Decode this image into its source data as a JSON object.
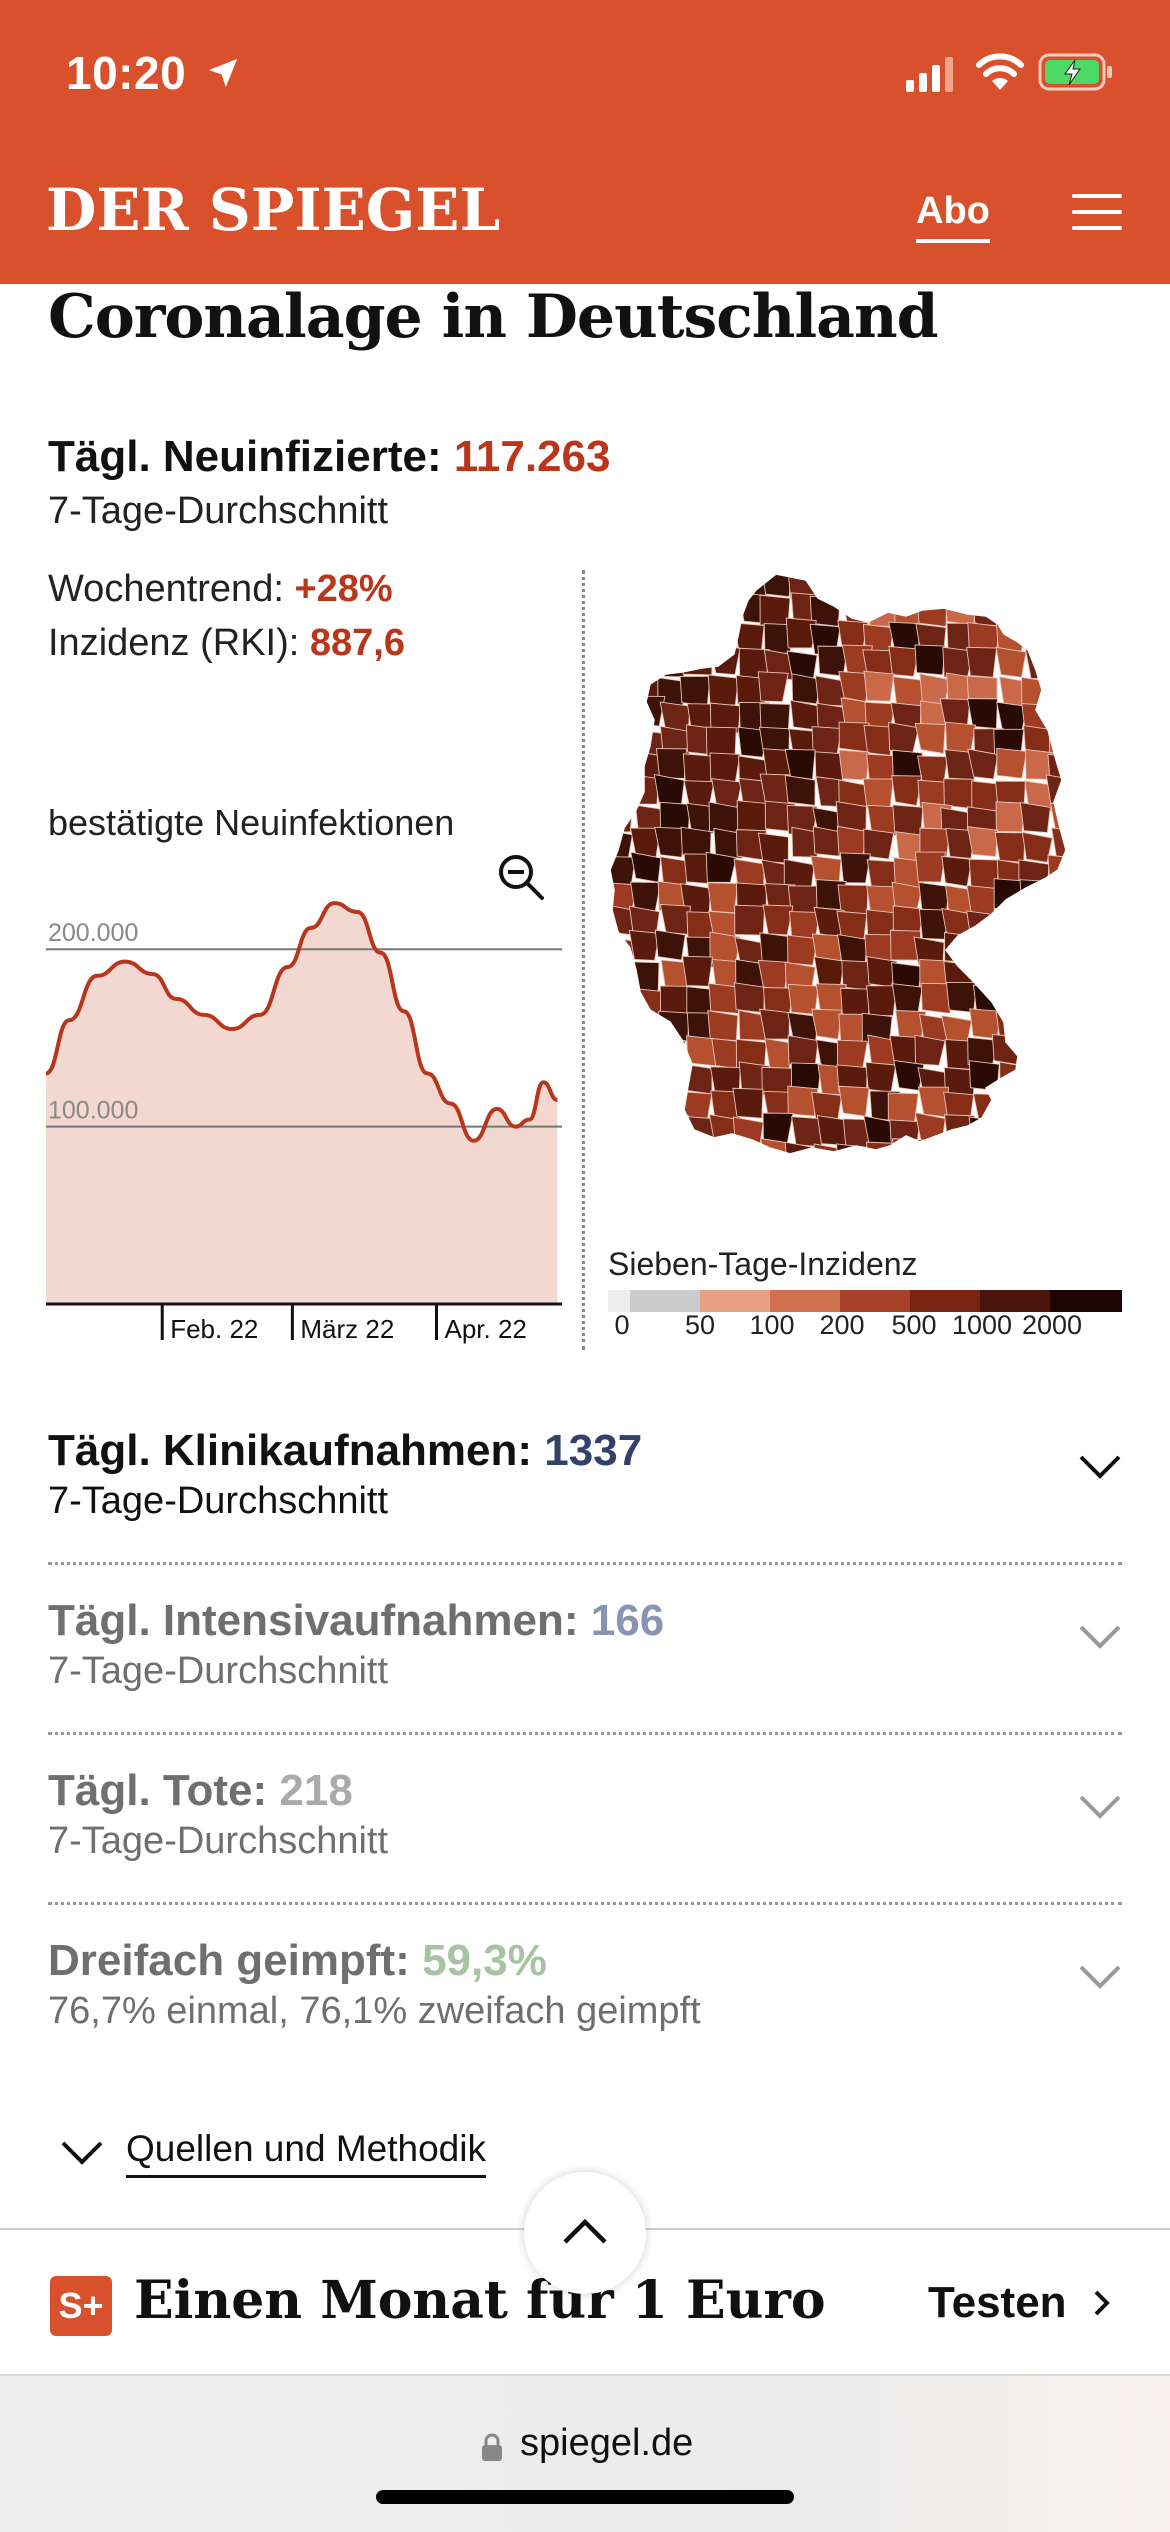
{
  "status_bar": {
    "time": "10:20"
  },
  "header": {
    "logo": "DER SPIEGEL",
    "abo_label": "Abo"
  },
  "page_title": "Coronalage in Deutschland",
  "infections": {
    "label": "Tägl. Neuinfizierte:",
    "value": "117.263",
    "sub": "7-Tage-Durchschnitt",
    "trend_label": "Wochentrend:",
    "trend_value": "+28%",
    "incidence_label": "Inzidenz (RKI):",
    "incidence_value": "887,6"
  },
  "chart_data": {
    "type": "area",
    "title": "bestätigte Neuinfektionen",
    "y_ticks": [
      "200.000",
      "100.000"
    ],
    "ylim": [
      0,
      230000
    ],
    "x_ticks": [
      "Feb. 22",
      "März 22",
      "Apr. 22"
    ],
    "x_start": "2022-01-07",
    "x_end": "2022-04-28",
    "x": [
      "01-07",
      "01-12",
      "01-18",
      "01-24",
      "01-30",
      "02-04",
      "02-10",
      "02-16",
      "02-22",
      "02-28",
      "03-05",
      "03-10",
      "03-15",
      "03-20",
      "03-25",
      "03-30",
      "04-04",
      "04-09",
      "04-14",
      "04-18",
      "04-21",
      "04-24",
      "04-27"
    ],
    "values": [
      130000,
      160000,
      185000,
      193000,
      186000,
      172000,
      163000,
      155000,
      163000,
      190000,
      212000,
      226000,
      221000,
      198000,
      165000,
      130000,
      113000,
      92000,
      110000,
      100000,
      104000,
      125000,
      115000
    ],
    "colors": {
      "line": "#b8371c",
      "fill": "#f2d8d0"
    }
  },
  "map": {
    "legend_title": "Sieben-Tage-Inzidenz",
    "legend_ticks": [
      "0",
      "50",
      "100",
      "200",
      "500",
      "1000",
      "2000"
    ],
    "legend_colors": [
      "#eeeeee",
      "#cccccc",
      "#e8a084",
      "#cf704f",
      "#a74228",
      "#7a2514",
      "#4a140a",
      "#1f0502"
    ]
  },
  "accordion": [
    {
      "label": "Tägl. Klinikaufnahmen:",
      "value": "1337",
      "sub": "7-Tage-Durchschnitt",
      "value_color": "#34406a"
    },
    {
      "label": "Tägl. Intensivaufnahmen:",
      "value": "166",
      "sub": "7-Tage-Durchschnitt",
      "value_color": "#8994b3"
    },
    {
      "label": "Tägl. Tote:",
      "value": "218",
      "sub": "7-Tage-Durchschnitt",
      "value_color": "#aaaaaa"
    },
    {
      "label": "Dreifach geimpft:",
      "value": "59,3%",
      "sub": "76,7% einmal, 76,1% zweifach geimpft",
      "value_color": "#a7c3a2"
    }
  ],
  "sources_label": "Quellen und Methodik",
  "promo": {
    "badge": "S+",
    "text": "Einen Monat für 1 Euro",
    "button": "Testen"
  },
  "browser": {
    "url": "spiegel.de"
  }
}
